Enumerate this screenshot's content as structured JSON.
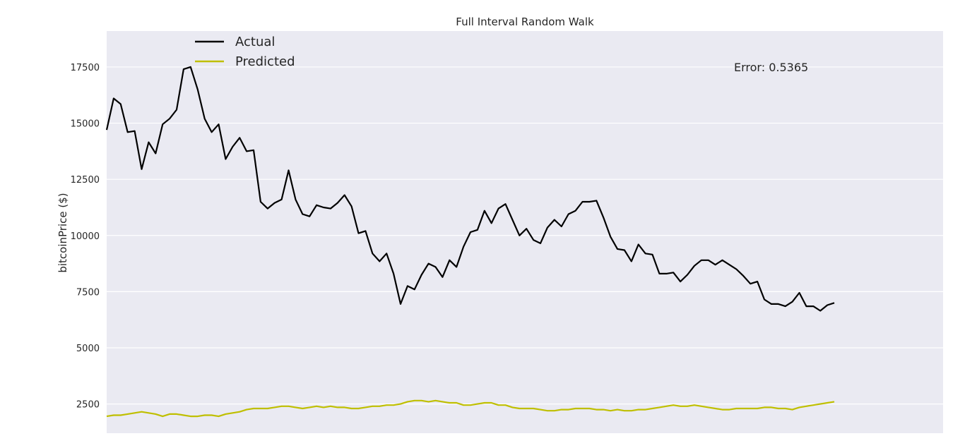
{
  "chart_data": {
    "type": "line",
    "title": "Full Interval Random Walk",
    "xlabel": "",
    "ylabel": "bitcoinPrice ($)",
    "ylim": [
      1200,
      19100
    ],
    "yticks": [
      2500,
      5000,
      7500,
      10000,
      12500,
      15000,
      17500
    ],
    "xaxis_ticks_visible": false,
    "grid": "horizontal",
    "legend_position": "top-left",
    "annotation": "Error: 0.5365",
    "colors": {
      "background": "#eaeaf2",
      "grid": "#ffffff",
      "Actual": "#000000",
      "Predicted": "#bfbf00"
    },
    "series": [
      {
        "name": "Actual",
        "values": [
          14700,
          16100,
          15850,
          14600,
          14650,
          12950,
          14150,
          13650,
          14950,
          15200,
          15600,
          17400,
          17500,
          16500,
          15200,
          14600,
          14950,
          13400,
          13950,
          14350,
          13750,
          13800,
          11500,
          11200,
          11450,
          11600,
          12900,
          11600,
          10950,
          10850,
          11350,
          11250,
          11200,
          11450,
          11800,
          11300,
          10100,
          10200,
          9200,
          8850,
          9200,
          8300,
          6950,
          7750,
          7600,
          8250,
          8750,
          8600,
          8150,
          8900,
          8600,
          9500,
          10150,
          10250,
          11100,
          10550,
          11200,
          11400,
          10700,
          10000,
          10300,
          9800,
          9650,
          10350,
          10700,
          10400,
          10950,
          11100,
          11500,
          11500,
          11550,
          10800,
          9950,
          9400,
          9350,
          8850,
          9600,
          9200,
          9150,
          8300,
          8300,
          8350,
          7950,
          8250,
          8650,
          8900,
          8900,
          8700,
          8900,
          8700,
          8500,
          8200,
          7850,
          7950,
          7150,
          6950,
          6950,
          6850,
          7050,
          7450,
          6850,
          6850,
          6650,
          6900,
          7000
        ]
      },
      {
        "name": "Predicted",
        "values": [
          1950,
          2000,
          2000,
          2050,
          2100,
          2150,
          2100,
          2050,
          1950,
          2050,
          2050,
          2000,
          1950,
          1950,
          2000,
          2000,
          1950,
          2050,
          2100,
          2150,
          2250,
          2300,
          2300,
          2300,
          2350,
          2400,
          2400,
          2350,
          2300,
          2350,
          2400,
          2350,
          2400,
          2350,
          2350,
          2300,
          2300,
          2350,
          2400,
          2400,
          2450,
          2450,
          2500,
          2600,
          2650,
          2650,
          2600,
          2650,
          2600,
          2550,
          2550,
          2450,
          2450,
          2500,
          2550,
          2550,
          2450,
          2450,
          2350,
          2300,
          2300,
          2300,
          2250,
          2200,
          2200,
          2250,
          2250,
          2300,
          2300,
          2300,
          2250,
          2250,
          2200,
          2250,
          2200,
          2200,
          2250,
          2250,
          2300,
          2350,
          2400,
          2450,
          2400,
          2400,
          2450,
          2400,
          2350,
          2300,
          2250,
          2250,
          2300,
          2300,
          2300,
          2300,
          2350,
          2350,
          2300,
          2300,
          2250,
          2350,
          2400,
          2450,
          2500,
          2550,
          2600
        ]
      }
    ]
  }
}
